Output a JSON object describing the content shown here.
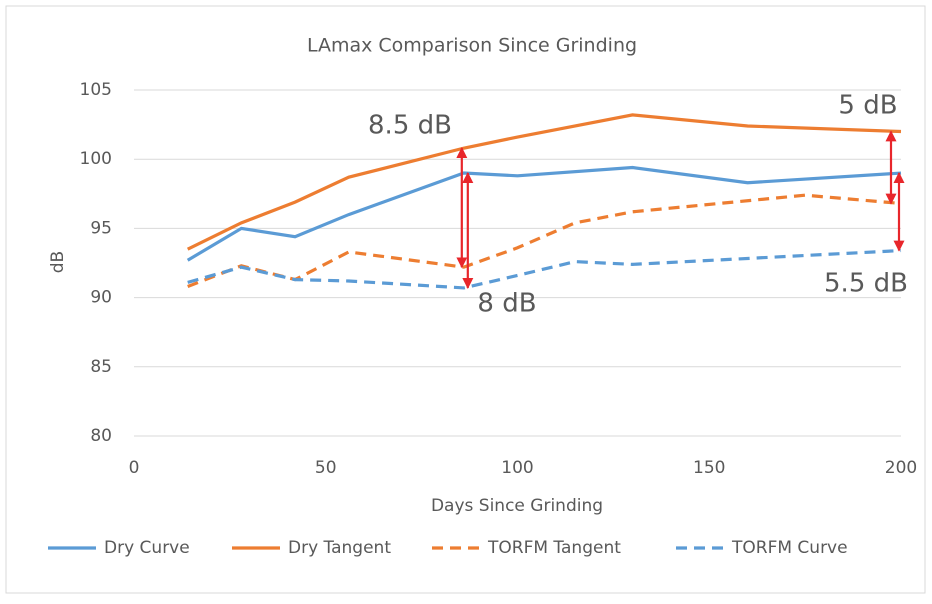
{
  "chart_data": {
    "type": "line",
    "title": "LAmax Comparison Since Grinding",
    "xlabel": "Days Since Grinding",
    "ylabel": "dB",
    "xlim": [
      0,
      200
    ],
    "xticks": [
      0,
      50,
      100,
      150,
      200
    ],
    "ylim": [
      80,
      105
    ],
    "yticks": [
      80,
      85,
      90,
      95,
      100,
      105
    ],
    "grid": true,
    "legend": "bottom",
    "series": [
      {
        "name": "Dry Curve",
        "color": "#5b9bd5",
        "style": "solid",
        "x": [
          14,
          28,
          42,
          56,
          86,
          100,
          130,
          160,
          200
        ],
        "values": [
          92.7,
          95.0,
          94.4,
          96.0,
          99.0,
          98.8,
          99.4,
          98.3,
          99.0
        ]
      },
      {
        "name": "Dry Tangent",
        "color": "#ed7d31",
        "style": "solid",
        "x": [
          14,
          28,
          42,
          56,
          86,
          100,
          130,
          160,
          200
        ],
        "values": [
          93.5,
          95.4,
          96.9,
          98.7,
          100.8,
          101.6,
          103.2,
          102.4,
          102.0
        ]
      },
      {
        "name": "TORFM Tangent",
        "color": "#ed7d31",
        "style": "dashed",
        "x": [
          14,
          28,
          42,
          56,
          86,
          100,
          115,
          130,
          175,
          200
        ],
        "values": [
          90.8,
          92.3,
          91.3,
          93.3,
          92.2,
          93.6,
          95.4,
          96.2,
          97.4,
          96.8
        ]
      },
      {
        "name": "TORFM Curve",
        "color": "#5b9bd5",
        "style": "dashed",
        "x": [
          14,
          28,
          42,
          56,
          86,
          100,
          115,
          130,
          200
        ],
        "values": [
          91.1,
          92.2,
          91.3,
          91.2,
          90.7,
          91.6,
          92.6,
          92.4,
          93.4
        ]
      }
    ],
    "annotations": [
      "8.5 dB",
      "8 dB",
      "5 dB",
      "5.5 dB"
    ]
  }
}
